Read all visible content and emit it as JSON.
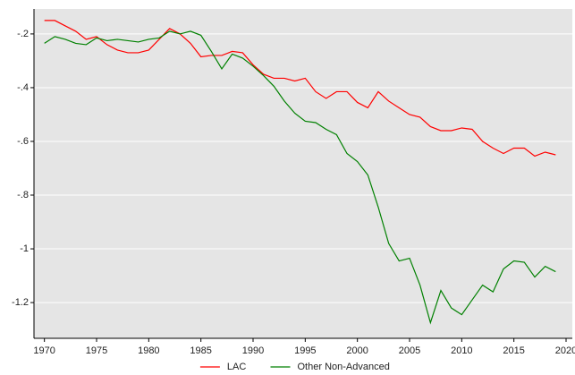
{
  "chart_data": {
    "type": "line",
    "x": [
      1970,
      1971,
      1972,
      1973,
      1974,
      1975,
      1976,
      1977,
      1978,
      1979,
      1980,
      1981,
      1982,
      1983,
      1984,
      1985,
      1986,
      1987,
      1988,
      1989,
      1990,
      1991,
      1992,
      1993,
      1994,
      1995,
      1996,
      1997,
      1998,
      1999,
      2000,
      2001,
      2002,
      2003,
      2004,
      2005,
      2006,
      2007,
      2008,
      2009,
      2010,
      2011,
      2012,
      2013,
      2014,
      2015,
      2016,
      2017,
      2018,
      2019
    ],
    "series": [
      {
        "name": "LAC",
        "color": "#ff0000",
        "values": [
          -0.15,
          -0.15,
          -0.17,
          -0.19,
          -0.22,
          -0.21,
          -0.24,
          -0.26,
          -0.27,
          -0.27,
          -0.26,
          -0.22,
          -0.18,
          -0.2,
          -0.235,
          -0.285,
          -0.28,
          -0.28,
          -0.265,
          -0.27,
          -0.315,
          -0.35,
          -0.365,
          -0.365,
          -0.375,
          -0.365,
          -0.415,
          -0.44,
          -0.415,
          -0.415,
          -0.455,
          -0.475,
          -0.415,
          -0.45,
          -0.475,
          -0.5,
          -0.51,
          -0.545,
          -0.56,
          -0.56,
          -0.55,
          -0.555,
          -0.6,
          -0.625,
          -0.645,
          -0.625,
          -0.625,
          -0.655,
          -0.64,
          -0.65
        ]
      },
      {
        "name": "Other Non-Advanced",
        "color": "#008000",
        "values": [
          -0.235,
          -0.21,
          -0.22,
          -0.235,
          -0.24,
          -0.215,
          -0.225,
          -0.22,
          -0.225,
          -0.23,
          -0.22,
          -0.215,
          -0.19,
          -0.2,
          -0.19,
          -0.205,
          -0.265,
          -0.33,
          -0.275,
          -0.29,
          -0.32,
          -0.355,
          -0.395,
          -0.45,
          -0.495,
          -0.525,
          -0.53,
          -0.555,
          -0.575,
          -0.645,
          -0.675,
          -0.725,
          -0.845,
          -0.98,
          -1.045,
          -1.035,
          -1.135,
          -1.275,
          -1.155,
          -1.22,
          -1.245,
          -1.19,
          -1.135,
          -1.16,
          -1.075,
          -1.045,
          -1.05,
          -1.105,
          -1.065,
          -1.085
        ]
      }
    ],
    "xlim": [
      1969,
      2020.6
    ],
    "xticks": [
      1970,
      1975,
      1980,
      1985,
      1990,
      1995,
      2000,
      2005,
      2010,
      2015,
      2020
    ],
    "ylim": [
      -1.333,
      -0.107
    ],
    "yticks": [
      {
        "value": -0.2,
        "label": "-.2"
      },
      {
        "value": -0.4,
        "label": "-.4"
      },
      {
        "value": -0.6,
        "label": "-.6"
      },
      {
        "value": -0.8,
        "label": "-.8"
      },
      -1,
      -1.2
    ],
    "grid": true,
    "legend": "bottom"
  }
}
